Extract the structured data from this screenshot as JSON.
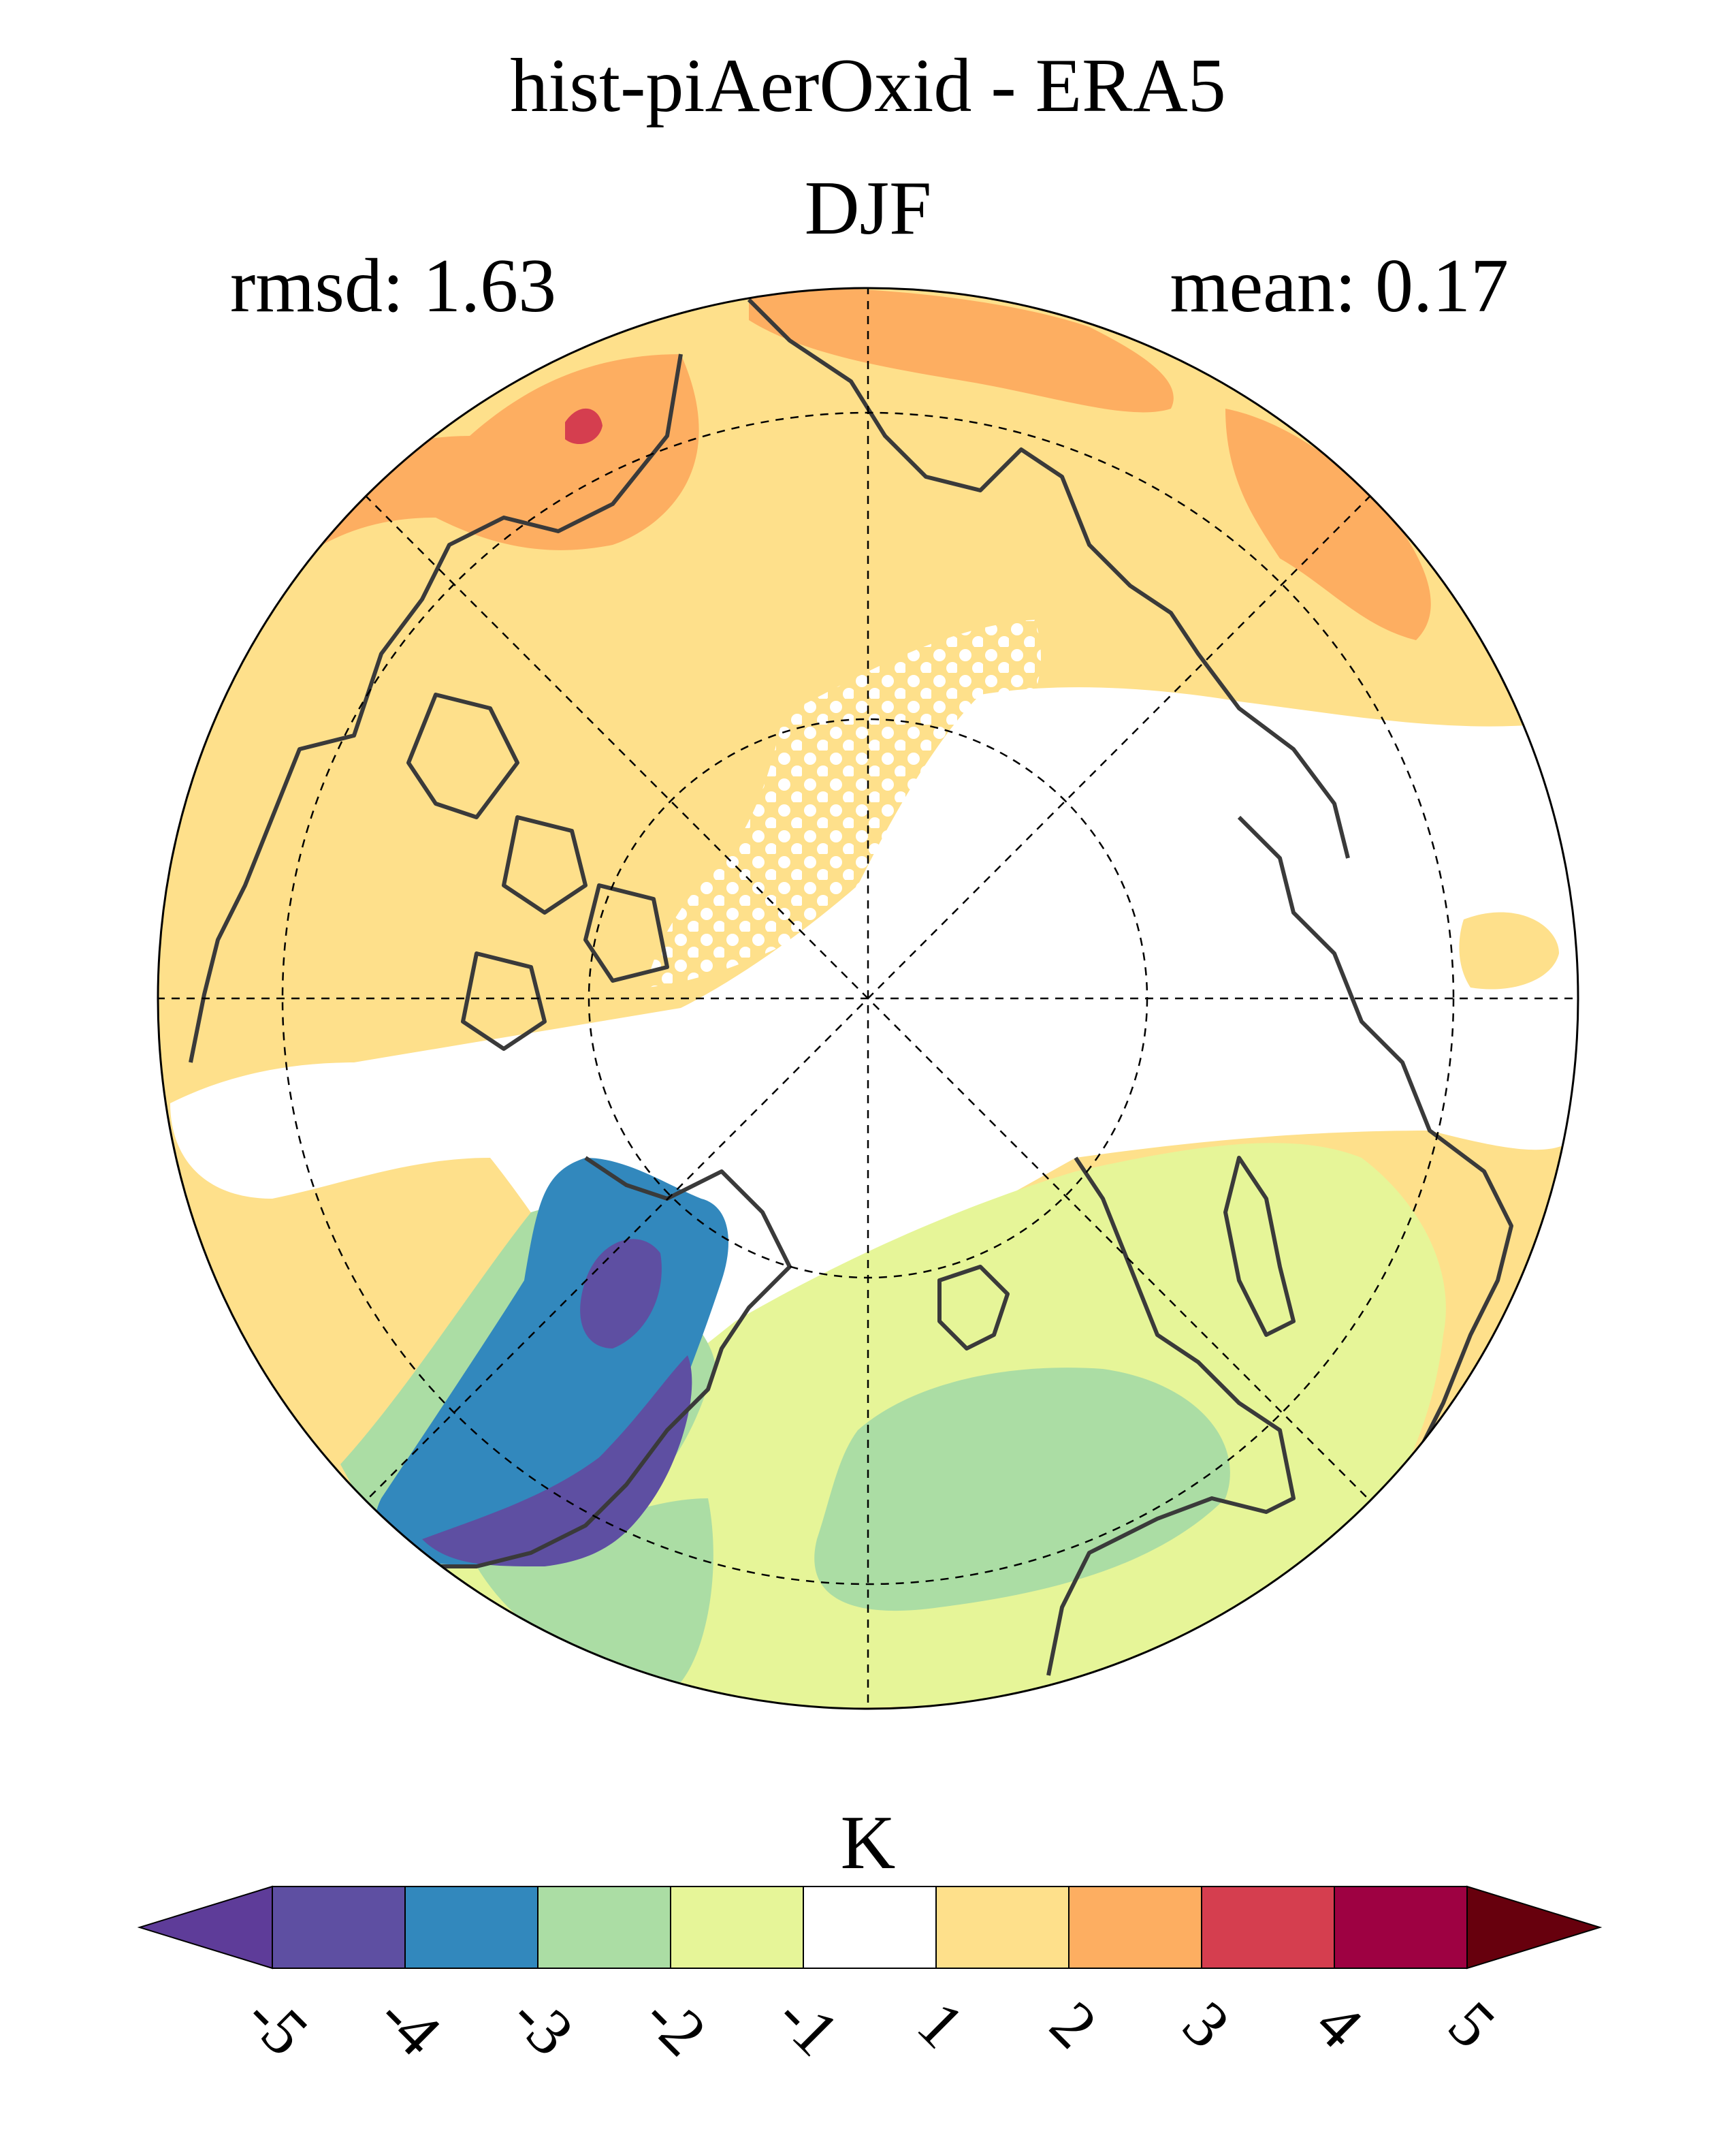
{
  "title": "hist-piAerOxid - ERA5",
  "subtitle": "DJF",
  "stats": {
    "left": "rmsd: 1.63",
    "right": "mean: 0.17"
  },
  "colorbar": {
    "unit": "K",
    "tick_labels": [
      "-5",
      "-4",
      "-3",
      "-2",
      "-1",
      "1",
      "2",
      "3",
      "4",
      "5"
    ],
    "colors": [
      "#5e3c99",
      "#5e4fa2",
      "#3288bd",
      "#abdda4",
      "#e6f598",
      "#ffffff",
      "#fee08b",
      "#fdae61",
      "#d53e4f",
      "#9e0142",
      "#67000d"
    ]
  },
  "colors": {
    "coastline": "#3a3a3a",
    "grid": "#000000",
    "stipple": "#ffffff"
  }
}
